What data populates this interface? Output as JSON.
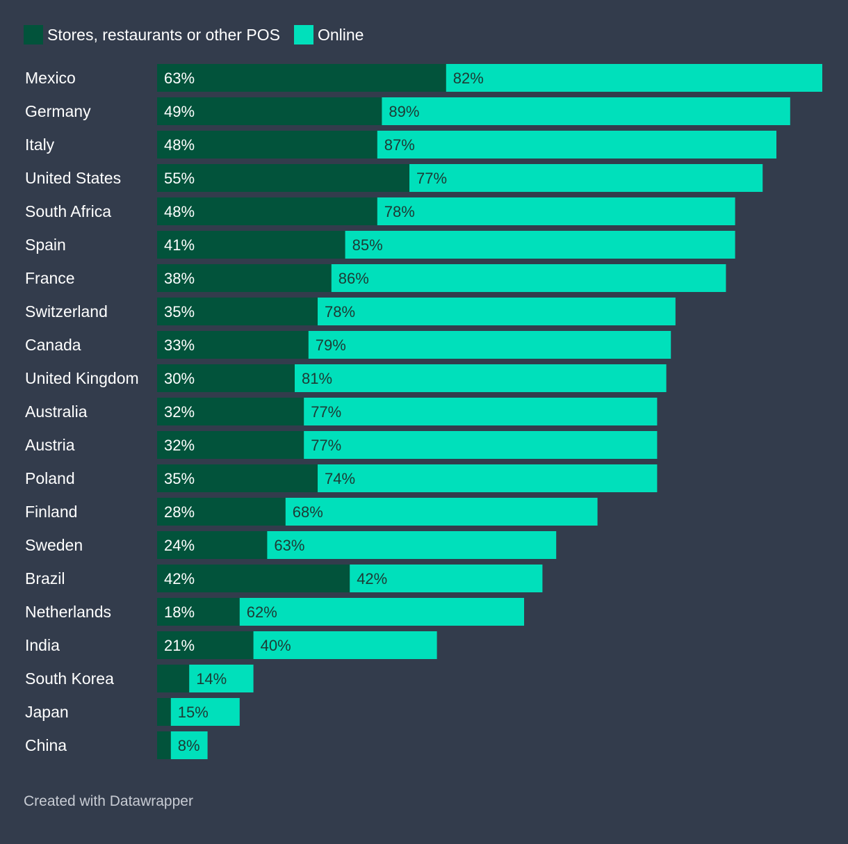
{
  "legend": {
    "items": [
      {
        "label": "Stores, restaurants or other POS",
        "color": "#02533b"
      },
      {
        "label": "Online",
        "color": "#00e0bb"
      }
    ]
  },
  "chart_data": {
    "type": "bar",
    "orientation": "horizontal",
    "stacked": true,
    "title": "",
    "xlabel": "",
    "ylabel": "",
    "grid": false,
    "legend_position": "top-left",
    "categories": [
      "Mexico",
      "Germany",
      "Italy",
      "United States",
      "South Africa",
      "Spain",
      "France",
      "Switzerland",
      "Canada",
      "United Kingdom",
      "Australia",
      "Austria",
      "Poland",
      "Finland",
      "Sweden",
      "Brazil",
      "Netherlands",
      "India",
      "South Korea",
      "Japan",
      "China"
    ],
    "series": [
      {
        "name": "Stores, restaurants or other POS",
        "color": "#02533b",
        "values": [
          63,
          49,
          48,
          55,
          48,
          41,
          38,
          35,
          33,
          30,
          32,
          32,
          35,
          28,
          24,
          42,
          18,
          21,
          7,
          3,
          3
        ],
        "labels": [
          "63%",
          "49%",
          "48%",
          "55%",
          "48%",
          "41%",
          "38%",
          "35%",
          "33%",
          "30%",
          "32%",
          "32%",
          "35%",
          "28%",
          "24%",
          "42%",
          "18%",
          "21%",
          "",
          "",
          ""
        ]
      },
      {
        "name": "Online",
        "color": "#00e0bb",
        "values": [
          82,
          89,
          87,
          77,
          78,
          85,
          86,
          78,
          79,
          81,
          77,
          77,
          74,
          68,
          63,
          42,
          62,
          40,
          14,
          15,
          8
        ],
        "labels": [
          "82%",
          "89%",
          "87%",
          "77%",
          "78%",
          "85%",
          "86%",
          "78%",
          "79%",
          "81%",
          "77%",
          "77%",
          "74%",
          "68%",
          "63%",
          "42%",
          "62%",
          "40%",
          "14%",
          "15%",
          "8%"
        ]
      }
    ],
    "xlim": [
      0,
      145
    ]
  },
  "footer": {
    "credit": "Created with Datawrapper"
  }
}
